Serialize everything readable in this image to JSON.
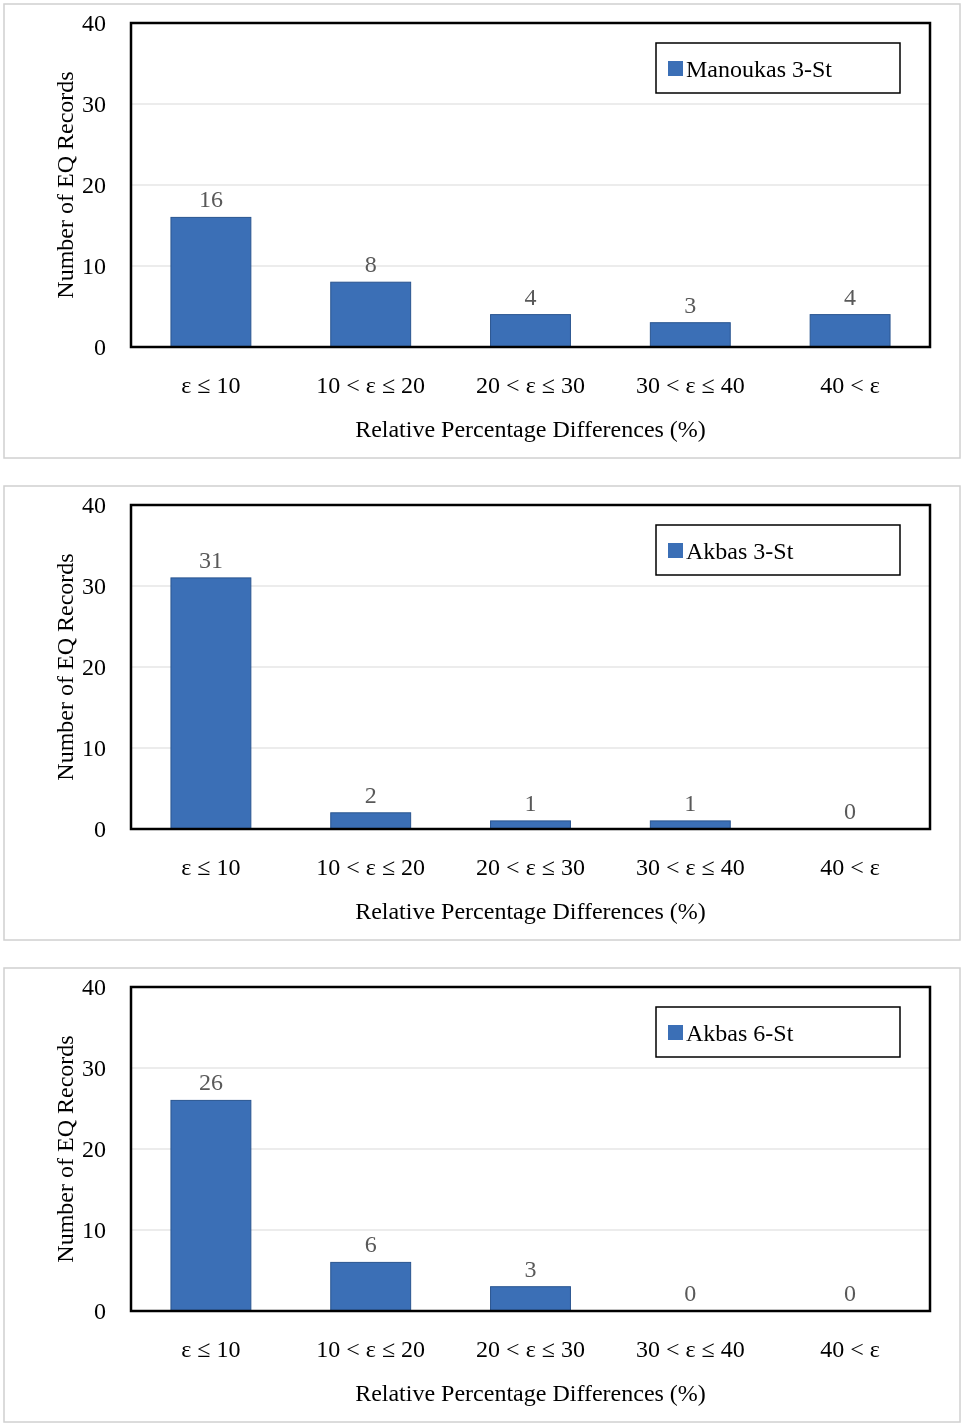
{
  "chart_data": [
    {
      "type": "bar",
      "xlabel": "Relative Percentage Differences (%)",
      "ylabel": "Number of EQ Records",
      "categories": [
        "ε ≤ 10",
        "10 < ε ≤ 20",
        "20 < ε ≤ 30",
        "30 < ε ≤ 40",
        "40 < ε"
      ],
      "series": [
        {
          "name": "Manoukas 3-St",
          "color": "#3b6fb6",
          "values": [
            16,
            8,
            4,
            3,
            4
          ]
        }
      ],
      "ylim": [
        0,
        40
      ],
      "yticks": [
        0,
        10,
        20,
        30,
        40
      ],
      "grid": "y",
      "legend": "top right",
      "data_labels": true
    },
    {
      "type": "bar",
      "xlabel": "Relative Percentage Differences (%)",
      "ylabel": "Number of EQ Records",
      "categories": [
        "ε ≤ 10",
        "10 < ε ≤ 20",
        "20 < ε ≤ 30",
        "30 < ε ≤ 40",
        "40 < ε"
      ],
      "series": [
        {
          "name": "Akbas 3-St",
          "color": "#3b6fb6",
          "values": [
            31,
            2,
            1,
            1,
            0
          ]
        }
      ],
      "ylim": [
        0,
        40
      ],
      "yticks": [
        0,
        10,
        20,
        30,
        40
      ],
      "grid": "y",
      "legend": "top right",
      "data_labels": true
    },
    {
      "type": "bar",
      "xlabel": "Relative Percentage Differences (%)",
      "ylabel": "Number of EQ Records",
      "categories": [
        "ε ≤ 10",
        "10 < ε ≤ 20",
        "20 < ε ≤ 30",
        "30 < ε ≤ 40",
        "40 < ε"
      ],
      "series": [
        {
          "name": "Akbas 6-St",
          "color": "#3b6fb6",
          "values": [
            26,
            6,
            3,
            0,
            0
          ]
        }
      ],
      "ylim": [
        0,
        40
      ],
      "yticks": [
        0,
        10,
        20,
        30,
        40
      ],
      "grid": "y",
      "legend": "top right",
      "data_labels": true
    }
  ]
}
